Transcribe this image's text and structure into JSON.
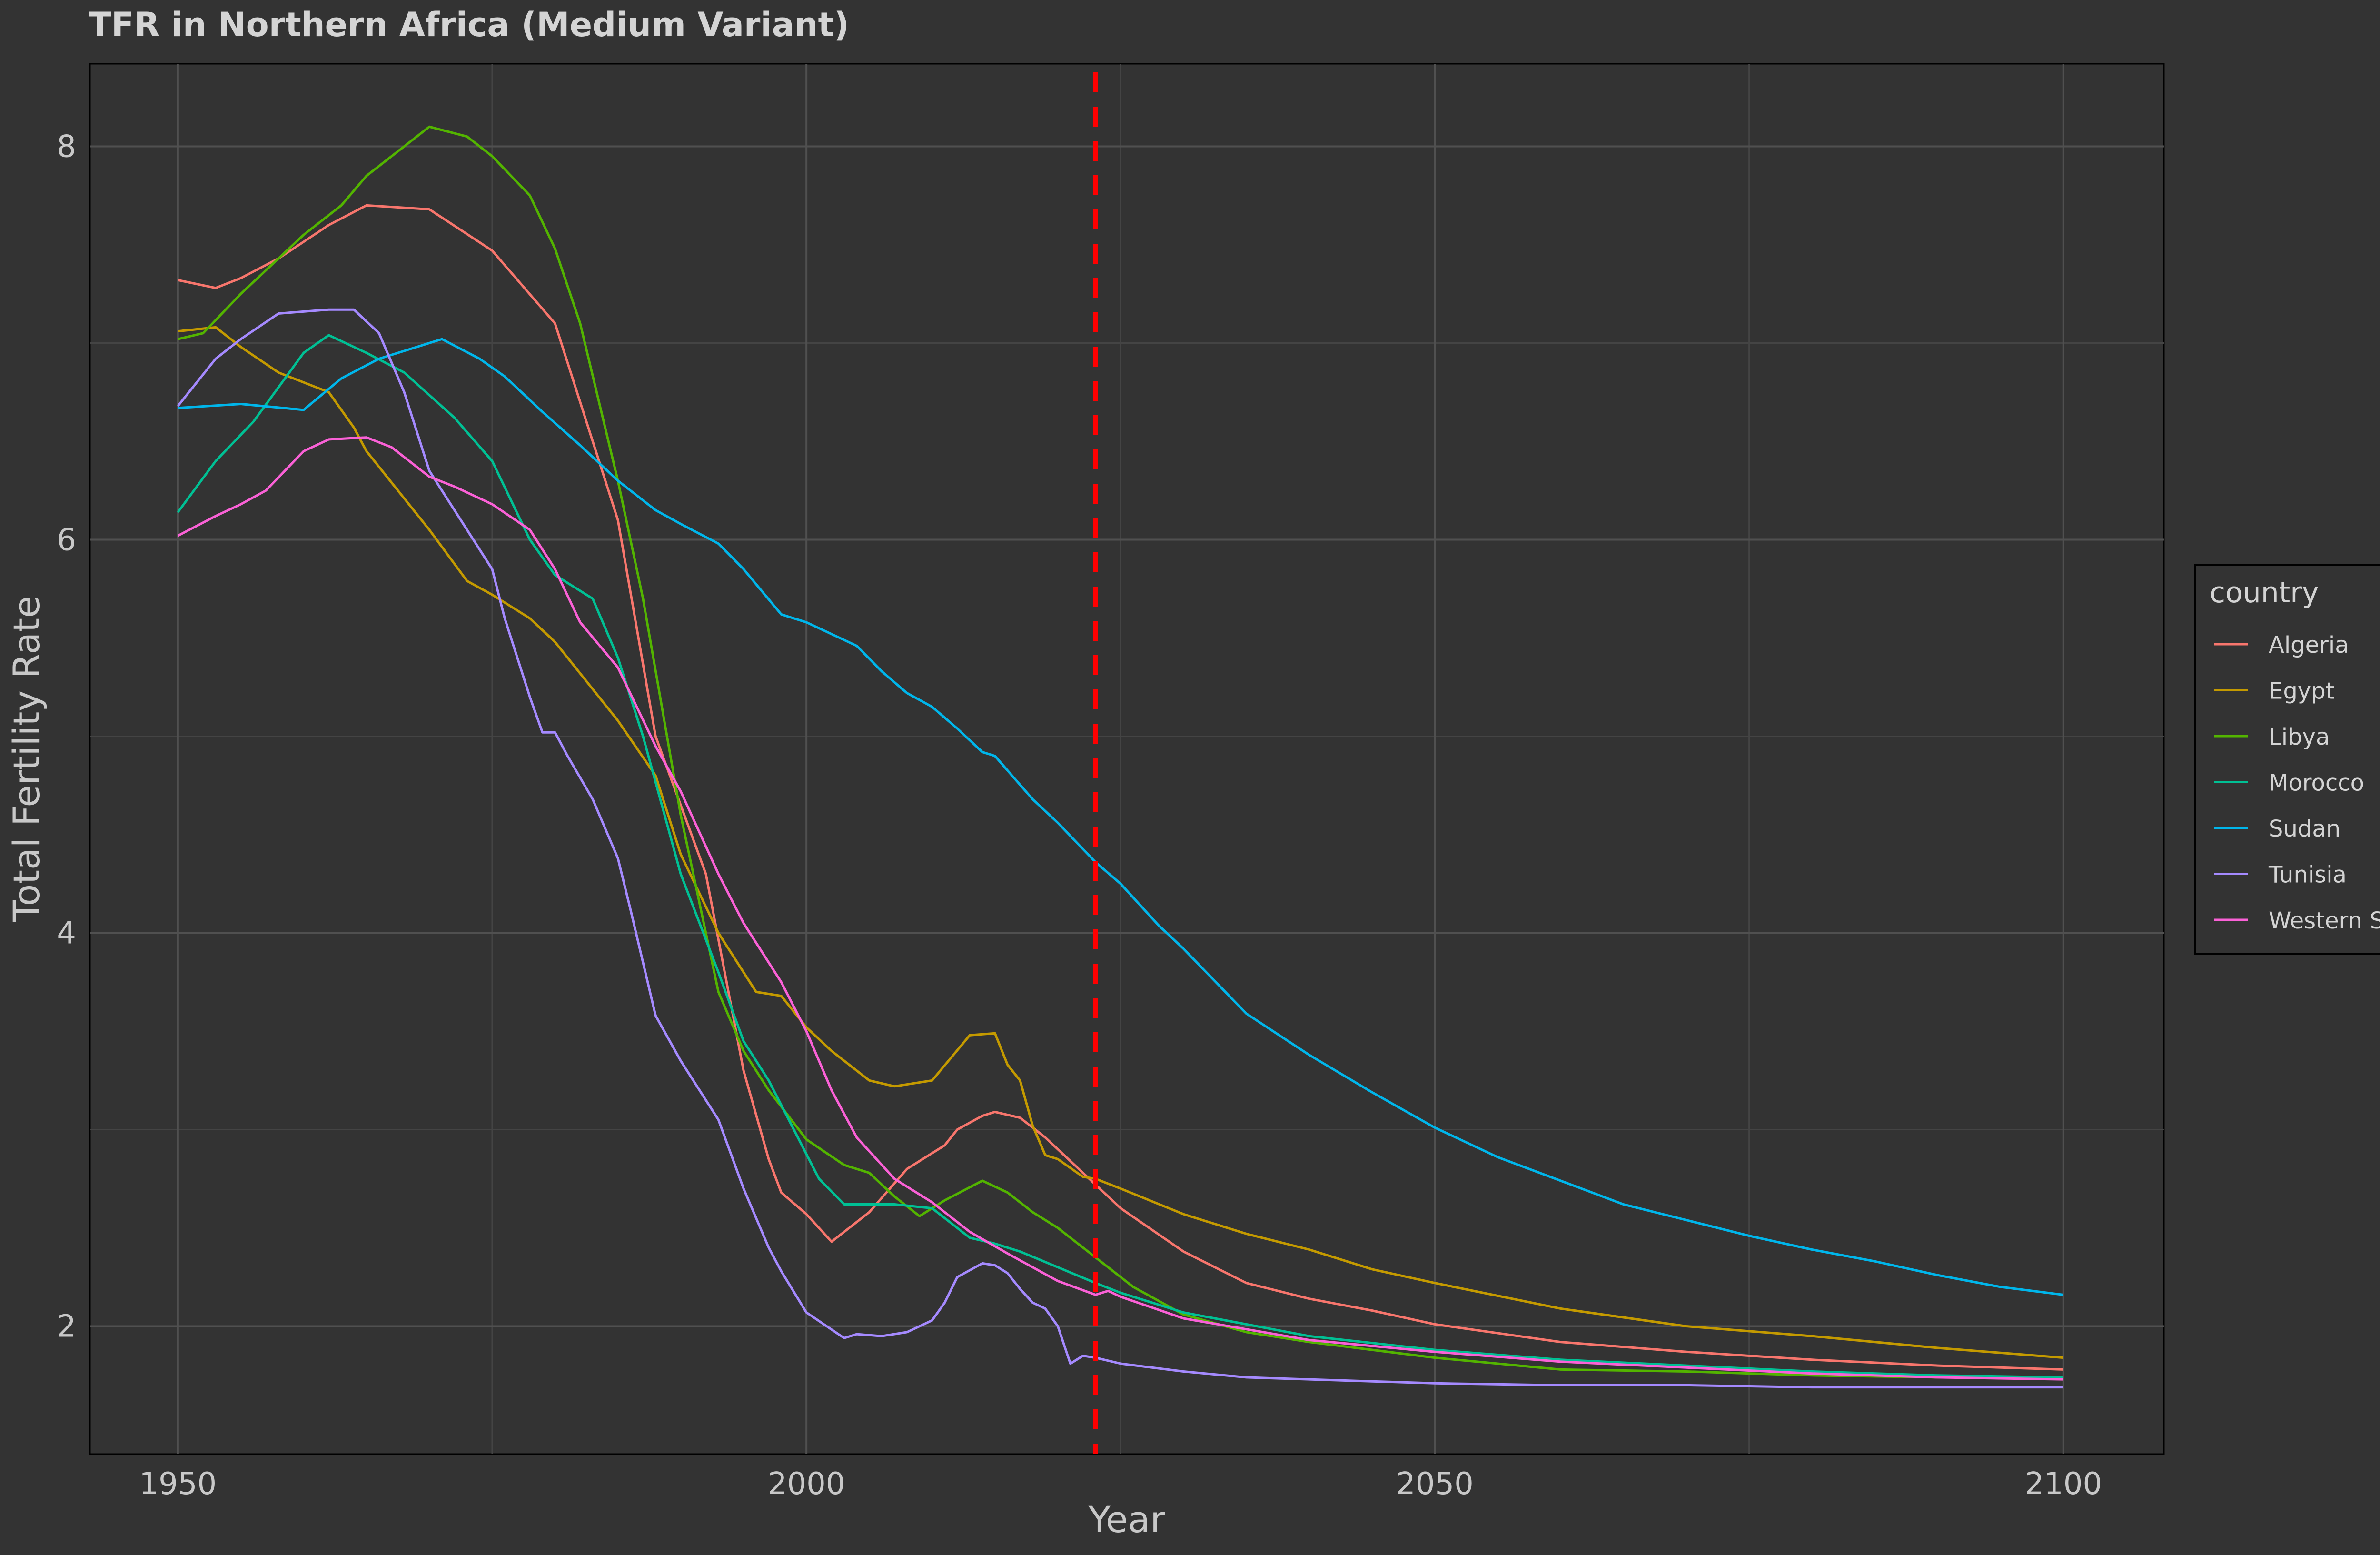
{
  "chart_data": {
    "type": "line",
    "title": "TFR in Northern Africa (Medium Variant)",
    "xlabel": "Year",
    "ylabel": "Total Fertility Rate",
    "x_ticks": [
      "1950",
      "2000",
      "2050",
      "2100"
    ],
    "y_ticks": [
      "2",
      "4",
      "6",
      "8"
    ],
    "xlim": [
      1943,
      2108
    ],
    "ylim": [
      1.35,
      8.42
    ],
    "grid": true,
    "reference_line": {
      "x": 2023,
      "color": "#ff0000",
      "style": "dashed"
    },
    "legend": {
      "title": "country",
      "placement": "right"
    },
    "series": [
      {
        "name": "Algeria",
        "color": "#F8766D",
        "x": [
          1950,
          1953,
          1955,
          1958,
          1962,
          1965,
          1970,
          1975,
          1980,
          1985,
          1988,
          1992,
          1995,
          1997,
          1998,
          2000,
          2002,
          2005,
          2008,
          2011,
          2012,
          2014,
          2015,
          2017,
          2019,
          2020,
          2022,
          2025,
          2030,
          2035,
          2040,
          2045,
          2050,
          2060,
          2070,
          2080,
          2090,
          2100
        ],
        "values": [
          7.32,
          7.28,
          7.33,
          7.43,
          7.6,
          7.7,
          7.68,
          7.47,
          7.1,
          6.1,
          5.0,
          4.3,
          3.3,
          2.85,
          2.68,
          2.57,
          2.43,
          2.58,
          2.8,
          2.92,
          3.0,
          3.07,
          3.09,
          3.06,
          2.96,
          2.9,
          2.78,
          2.6,
          2.38,
          2.22,
          2.14,
          2.08,
          2.01,
          1.92,
          1.87,
          1.83,
          1.8,
          1.78
        ]
      },
      {
        "name": "Egypt",
        "color": "#C49A00",
        "x": [
          1950,
          1953,
          1955,
          1958,
          1962,
          1964,
          1965,
          1970,
          1973,
          1975,
          1978,
          1980,
          1982,
          1985,
          1988,
          1990,
          1993,
          1996,
          1998,
          2000,
          2002,
          2005,
          2007,
          2010,
          2013,
          2015,
          2016,
          2017,
          2018,
          2019,
          2020,
          2022,
          2023,
          2025,
          2030,
          2035,
          2040,
          2045,
          2050,
          2060,
          2070,
          2080,
          2090,
          2100
        ],
        "values": [
          7.06,
          7.08,
          6.98,
          6.85,
          6.75,
          6.57,
          6.45,
          6.05,
          5.79,
          5.72,
          5.6,
          5.48,
          5.32,
          5.08,
          4.8,
          4.4,
          4.0,
          3.7,
          3.68,
          3.52,
          3.4,
          3.25,
          3.22,
          3.25,
          3.48,
          3.49,
          3.33,
          3.25,
          3.02,
          2.87,
          2.85,
          2.76,
          2.75,
          2.7,
          2.57,
          2.47,
          2.39,
          2.29,
          2.22,
          2.09,
          2.0,
          1.95,
          1.89,
          1.84
        ]
      },
      {
        "name": "Libya",
        "color": "#53B400",
        "x": [
          1950,
          1952,
          1955,
          1960,
          1963,
          1965,
          1968,
          1970,
          1973,
          1975,
          1978,
          1980,
          1982,
          1985,
          1987,
          1990,
          1993,
          1995,
          1997,
          2000,
          2003,
          2005,
          2007,
          2009,
          2011,
          2014,
          2016,
          2018,
          2020,
          2022,
          2024,
          2026,
          2030,
          2035,
          2040,
          2050,
          2060,
          2070,
          2080,
          2090,
          2100
        ],
        "values": [
          7.02,
          7.05,
          7.25,
          7.55,
          7.7,
          7.85,
          8.0,
          8.1,
          8.05,
          7.95,
          7.75,
          7.48,
          7.1,
          6.3,
          5.7,
          4.6,
          3.7,
          3.4,
          3.2,
          2.95,
          2.82,
          2.78,
          2.66,
          2.56,
          2.64,
          2.74,
          2.68,
          2.58,
          2.5,
          2.4,
          2.3,
          2.2,
          2.06,
          1.97,
          1.92,
          1.84,
          1.78,
          1.77,
          1.75,
          1.74,
          1.74
        ]
      },
      {
        "name": "Morocco",
        "color": "#00C094",
        "x": [
          1950,
          1953,
          1956,
          1960,
          1962,
          1965,
          1968,
          1972,
          1975,
          1978,
          1980,
          1983,
          1985,
          1987,
          1990,
          1993,
          1995,
          1997,
          1999,
          2001,
          2003,
          2005,
          2007,
          2010,
          2013,
          2015,
          2017,
          2020,
          2023,
          2025,
          2030,
          2040,
          2050,
          2060,
          2070,
          2080,
          2090,
          2100
        ],
        "values": [
          6.14,
          6.4,
          6.6,
          6.95,
          7.04,
          6.95,
          6.85,
          6.62,
          6.4,
          6.0,
          5.82,
          5.7,
          5.4,
          5.0,
          4.3,
          3.8,
          3.45,
          3.25,
          3.0,
          2.75,
          2.62,
          2.62,
          2.62,
          2.6,
          2.45,
          2.42,
          2.38,
          2.3,
          2.22,
          2.17,
          2.07,
          1.95,
          1.88,
          1.83,
          1.8,
          1.77,
          1.75,
          1.74
        ]
      },
      {
        "name": "Sudan",
        "color": "#00B6EB",
        "x": [
          1950,
          1955,
          1960,
          1963,
          1966,
          1969,
          1971,
          1974,
          1976,
          1979,
          1982,
          1985,
          1988,
          1990,
          1993,
          1995,
          1998,
          2000,
          2004,
          2006,
          2008,
          2010,
          2012,
          2014,
          2015,
          2018,
          2020,
          2023,
          2025,
          2028,
          2030,
          2035,
          2040,
          2045,
          2050,
          2055,
          2060,
          2065,
          2070,
          2075,
          2080,
          2085,
          2090,
          2095,
          2100
        ],
        "values": [
          6.67,
          6.69,
          6.66,
          6.82,
          6.92,
          6.98,
          7.02,
          6.92,
          6.83,
          6.65,
          6.48,
          6.3,
          6.15,
          6.08,
          5.98,
          5.85,
          5.62,
          5.58,
          5.46,
          5.33,
          5.22,
          5.15,
          5.04,
          4.92,
          4.9,
          4.68,
          4.56,
          4.36,
          4.25,
          4.04,
          3.92,
          3.59,
          3.38,
          3.19,
          3.01,
          2.86,
          2.74,
          2.62,
          2.54,
          2.46,
          2.39,
          2.33,
          2.26,
          2.2,
          2.16
        ]
      },
      {
        "name": "Tunisia",
        "color": "#A58AFF",
        "x": [
          1950,
          1953,
          1955,
          1958,
          1960,
          1962,
          1964,
          1966,
          1968,
          1970,
          1972,
          1975,
          1976,
          1978,
          1979,
          1980,
          1981,
          1983,
          1985,
          1986,
          1988,
          1990,
          1993,
          1995,
          1997,
          1998,
          2000,
          2003,
          2004,
          2006,
          2008,
          2010,
          2011,
          2012,
          2014,
          2015,
          2016,
          2017,
          2018,
          2019,
          2020,
          2021,
          2022,
          2023,
          2025,
          2030,
          2035,
          2040,
          2045,
          2050,
          2060,
          2070,
          2080,
          2090,
          2095,
          2100
        ],
        "values": [
          6.68,
          6.92,
          7.02,
          7.15,
          7.16,
          7.17,
          7.17,
          7.05,
          6.75,
          6.35,
          6.15,
          5.85,
          5.6,
          5.2,
          5.02,
          5.02,
          4.9,
          4.68,
          4.38,
          4.12,
          3.58,
          3.35,
          3.05,
          2.7,
          2.4,
          2.28,
          2.07,
          1.94,
          1.96,
          1.95,
          1.97,
          2.03,
          2.12,
          2.25,
          2.32,
          2.31,
          2.27,
          2.19,
          2.12,
          2.09,
          2.0,
          1.81,
          1.85,
          1.84,
          1.81,
          1.77,
          1.74,
          1.73,
          1.72,
          1.71,
          1.7,
          1.7,
          1.69,
          1.69,
          1.69,
          1.69
        ]
      },
      {
        "name": "Western Sahara",
        "color": "#FB61D7",
        "x": [
          1950,
          1953,
          1955,
          1957,
          1960,
          1962,
          1965,
          1967,
          1970,
          1972,
          1975,
          1978,
          1980,
          1982,
          1985,
          1988,
          1990,
          1993,
          1995,
          1998,
          2000,
          2002,
          2004,
          2007,
          2010,
          2013,
          2016,
          2020,
          2023,
          2024,
          2025,
          2030,
          2040,
          2050,
          2060,
          2070,
          2080,
          2090,
          2100
        ],
        "values": [
          6.02,
          6.12,
          6.18,
          6.25,
          6.45,
          6.51,
          6.52,
          6.47,
          6.32,
          6.27,
          6.18,
          6.05,
          5.85,
          5.58,
          5.35,
          4.95,
          4.72,
          4.3,
          4.05,
          3.75,
          3.5,
          3.2,
          2.96,
          2.75,
          2.63,
          2.48,
          2.37,
          2.23,
          2.16,
          2.18,
          2.15,
          2.04,
          1.93,
          1.87,
          1.82,
          1.79,
          1.76,
          1.74,
          1.73
        ]
      }
    ]
  }
}
